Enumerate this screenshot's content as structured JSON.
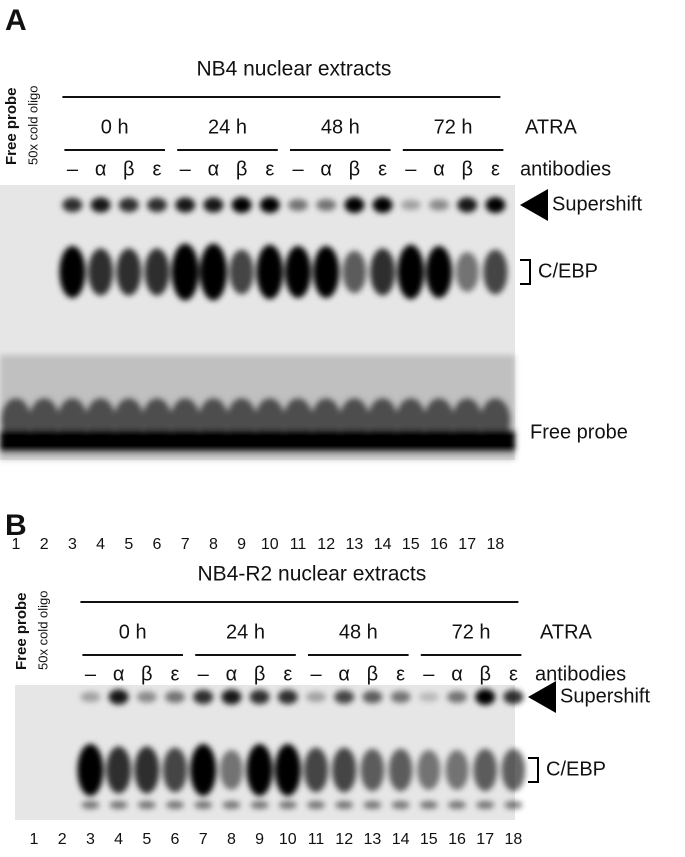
{
  "panels": [
    {
      "label": "A",
      "title": "NB4 nuclear extracts",
      "lane_headers": [
        "Free probe",
        "50x cold oligo"
      ],
      "timepoints": [
        "0 h",
        "24 h",
        "48 h",
        "72 h"
      ],
      "treatment_label": "ATRA",
      "antibodies": [
        "–",
        "α",
        "β",
        "ε"
      ],
      "antibodies_label": "antibodies",
      "band_labels": [
        "Supershift",
        "C/EBP",
        "Free probe"
      ],
      "lanes": [
        "1",
        "2",
        "3",
        "4",
        "5",
        "6",
        "7",
        "8",
        "9",
        "10",
        "11",
        "12",
        "13",
        "14",
        "15",
        "16",
        "17",
        "18"
      ]
    },
    {
      "label": "B",
      "title": "NB4-R2 nuclear extracts",
      "lane_headers": [
        "Free probe",
        "50x cold oligo"
      ],
      "timepoints": [
        "0 h",
        "24 h",
        "48 h",
        "72 h"
      ],
      "treatment_label": "ATRA",
      "antibodies": [
        "–",
        "α",
        "β",
        "ε"
      ],
      "antibodies_label": "antibodies",
      "band_labels": [
        "Supershift",
        "C/EBP"
      ],
      "lanes": [
        "1",
        "2",
        "3",
        "4",
        "5",
        "6",
        "7",
        "8",
        "9",
        "10",
        "11",
        "12",
        "13",
        "14",
        "15",
        "16",
        "17",
        "18"
      ]
    }
  ]
}
